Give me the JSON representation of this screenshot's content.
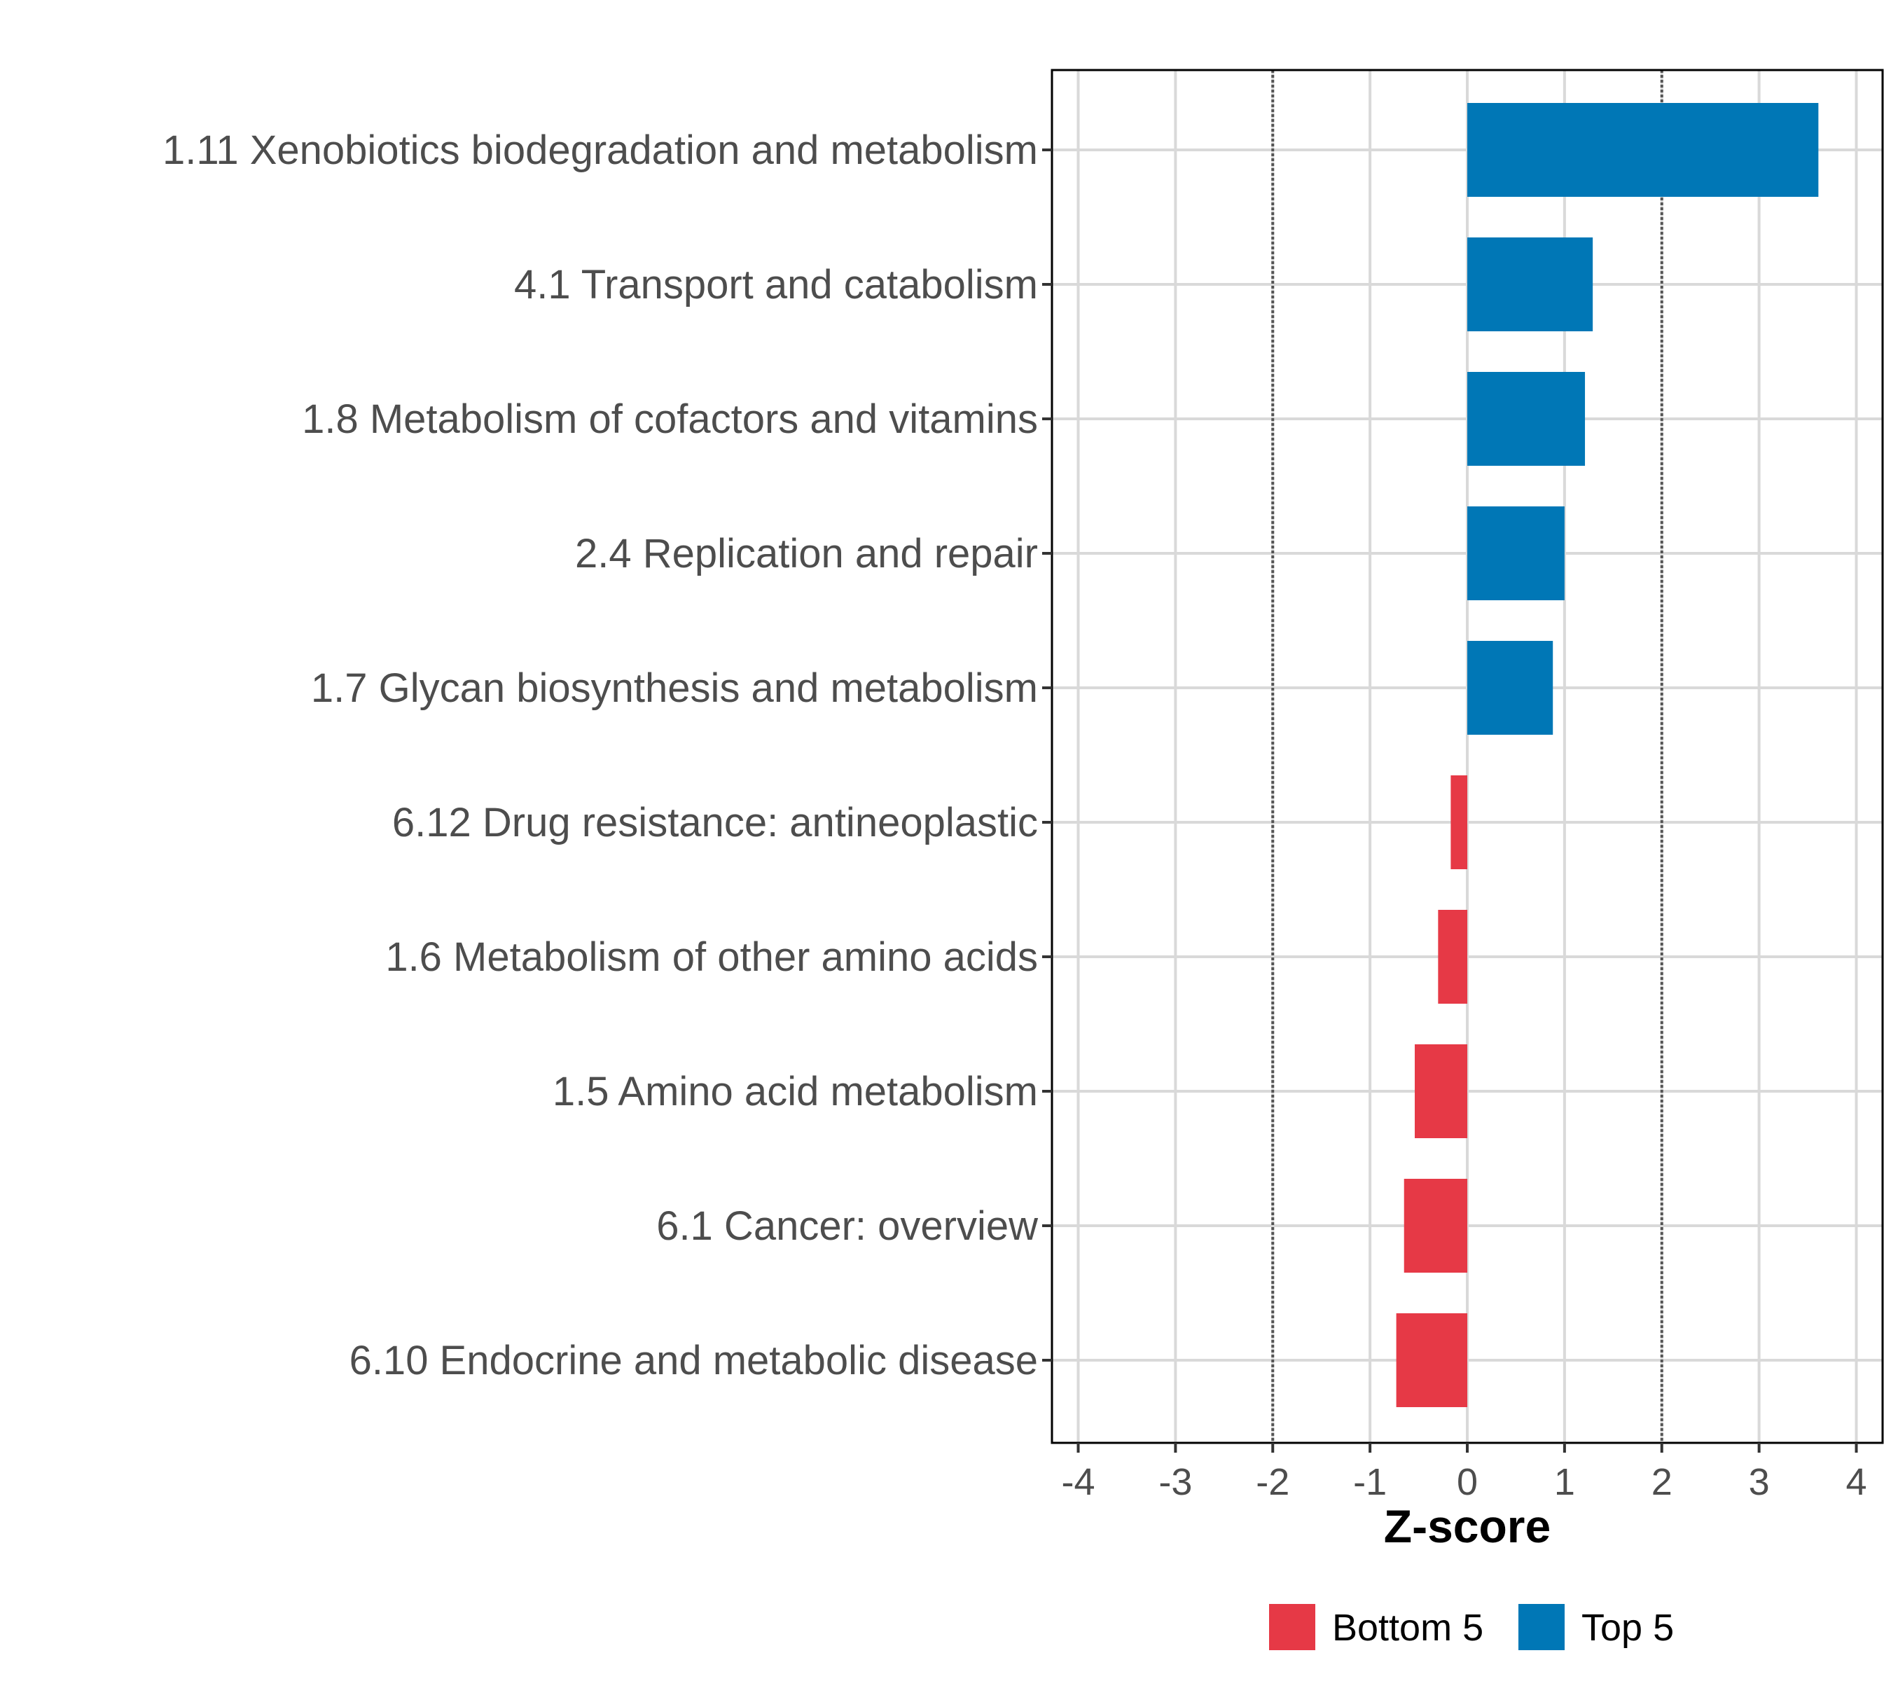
{
  "chart_data": {
    "type": "bar",
    "orientation": "horizontal",
    "categories": [
      "1.11 Xenobiotics biodegradation and metabolism",
      "4.1 Transport and catabolism",
      "1.8 Metabolism of cofactors and vitamins",
      "2.4 Replication and repair",
      "1.7 Glycan biosynthesis and metabolism",
      "6.12 Drug resistance: antineoplastic",
      "1.6 Metabolism of other amino acids",
      "1.5 Amino acid metabolism",
      "6.1 Cancer: overview",
      "6.10 Endocrine and metabolic disease"
    ],
    "values": [
      3.61,
      1.29,
      1.21,
      1.0,
      0.88,
      -0.17,
      -0.3,
      -0.54,
      -0.65,
      -0.73
    ],
    "groups": [
      "Top 5",
      "Top 5",
      "Top 5",
      "Top 5",
      "Top 5",
      "Bottom 5",
      "Bottom 5",
      "Bottom 5",
      "Bottom 5",
      "Bottom 5"
    ],
    "xlabel": "Z-score",
    "ylabel": "",
    "xlim": [
      -4.27,
      4.27
    ],
    "xticks": [
      -4,
      -3,
      -2,
      -1,
      0,
      1,
      2,
      3,
      4
    ],
    "xtick_labels": [
      "-4",
      "-3",
      "-2",
      "-1",
      "0",
      "1",
      "2",
      "3",
      "4"
    ],
    "reference_lines": [
      -2,
      2
    ],
    "grid": true,
    "legend": {
      "position": "bottom",
      "entries": [
        {
          "label": "Bottom 5",
          "color": "#e63946"
        },
        {
          "label": "Top 5",
          "color": "#0077b6"
        }
      ]
    }
  }
}
